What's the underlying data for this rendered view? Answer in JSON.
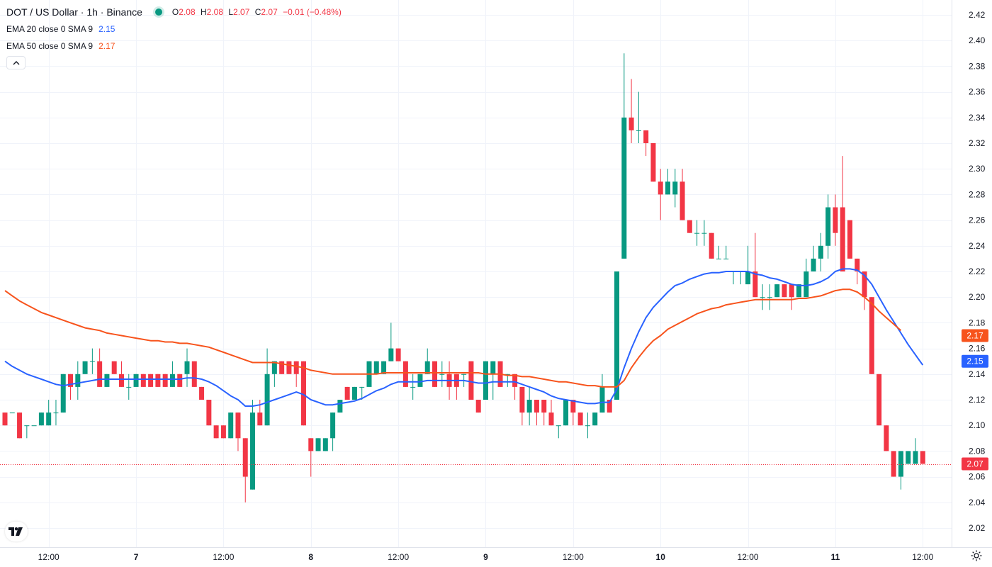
{
  "header": {
    "symbol": "DOT / US Dollar · 1h · Binance",
    "ohlc": [
      {
        "key": "O",
        "value": "2.08"
      },
      {
        "key": "H",
        "value": "2.08"
      },
      {
        "key": "L",
        "value": "2.07"
      },
      {
        "key": "C",
        "value": "2.07"
      }
    ],
    "change": "−0.01 (−0.48%)"
  },
  "indicators": [
    {
      "label": "EMA 20 close 0 SMA 9",
      "value": "2.15",
      "color": "#2962ff"
    },
    {
      "label": "EMA 50 close 0 SMA 9",
      "value": "2.17",
      "color": "#f7531c"
    }
  ],
  "icons": {
    "collapse": "chevron-up-icon",
    "logo": "tradingview-logo-icon",
    "settings": "gear-icon"
  },
  "colors": {
    "up": "#089981",
    "down": "#f23645",
    "ema20": "#2962ff",
    "ema50": "#f7531c",
    "grid": "#f0f3fa"
  },
  "chart_data": {
    "type": "candlestick",
    "xlabel": "",
    "ylabel": "",
    "ylim": [
      2.01,
      2.425
    ],
    "y_ticks": [
      "2.02",
      "2.04",
      "2.06",
      "2.08",
      "2.10",
      "2.12",
      "2.14",
      "2.16",
      "2.18",
      "2.20",
      "2.22",
      "2.24",
      "2.26",
      "2.28",
      "2.30",
      "2.32",
      "2.34",
      "2.36",
      "2.38",
      "2.40",
      "2.42"
    ],
    "x_ticks": [
      {
        "label": "12:00",
        "bar": 6
      },
      {
        "label": "7",
        "bar": 18
      },
      {
        "label": "12:00",
        "bar": 30
      },
      {
        "label": "8",
        "bar": 42
      },
      {
        "label": "12:00",
        "bar": 54
      },
      {
        "label": "9",
        "bar": 66
      },
      {
        "label": "12:00",
        "bar": 78
      },
      {
        "label": "10",
        "bar": 90
      },
      {
        "label": "12:00",
        "bar": 102
      },
      {
        "label": "11",
        "bar": 114
      },
      {
        "label": "12:00",
        "bar": 126
      }
    ],
    "last_price": "2.07",
    "ema20_last": "2.15",
    "ema50_last": "2.17",
    "candles": [
      [
        2.11,
        2.11,
        2.1,
        2.1
      ],
      [
        2.11,
        2.11,
        2.11,
        2.11
      ],
      [
        2.11,
        2.11,
        2.09,
        2.09
      ],
      [
        2.1,
        2.1,
        2.09,
        2.1
      ],
      [
        2.1,
        2.1,
        2.1,
        2.1
      ],
      [
        2.1,
        2.11,
        2.1,
        2.11
      ],
      [
        2.1,
        2.12,
        2.1,
        2.11
      ],
      [
        2.11,
        2.12,
        2.1,
        2.11
      ],
      [
        2.11,
        2.14,
        2.11,
        2.14
      ],
      [
        2.14,
        2.14,
        2.12,
        2.13
      ],
      [
        2.13,
        2.15,
        2.12,
        2.14
      ],
      [
        2.14,
        2.15,
        2.14,
        2.15
      ],
      [
        2.15,
        2.16,
        2.14,
        2.15
      ],
      [
        2.15,
        2.16,
        2.13,
        2.13
      ],
      [
        2.13,
        2.14,
        2.13,
        2.14
      ],
      [
        2.15,
        2.15,
        2.14,
        2.14
      ],
      [
        2.14,
        2.15,
        2.13,
        2.13
      ],
      [
        2.13,
        2.14,
        2.12,
        2.13
      ],
      [
        2.13,
        2.14,
        2.13,
        2.14
      ],
      [
        2.14,
        2.14,
        2.13,
        2.13
      ],
      [
        2.14,
        2.14,
        2.13,
        2.13
      ],
      [
        2.14,
        2.14,
        2.13,
        2.13
      ],
      [
        2.14,
        2.14,
        2.13,
        2.13
      ],
      [
        2.13,
        2.15,
        2.13,
        2.14
      ],
      [
        2.14,
        2.14,
        2.13,
        2.13
      ],
      [
        2.14,
        2.16,
        2.13,
        2.15
      ],
      [
        2.15,
        2.15,
        2.13,
        2.13
      ],
      [
        2.13,
        2.13,
        2.12,
        2.12
      ],
      [
        2.12,
        2.12,
        2.1,
        2.1
      ],
      [
        2.1,
        2.1,
        2.09,
        2.09
      ],
      [
        2.1,
        2.1,
        2.09,
        2.09
      ],
      [
        2.09,
        2.11,
        2.09,
        2.11
      ],
      [
        2.11,
        2.11,
        2.08,
        2.09
      ],
      [
        2.09,
        2.09,
        2.04,
        2.06
      ],
      [
        2.05,
        2.12,
        2.05,
        2.11
      ],
      [
        2.11,
        2.12,
        2.1,
        2.1
      ],
      [
        2.1,
        2.16,
        2.1,
        2.14
      ],
      [
        2.14,
        2.15,
        2.13,
        2.15
      ],
      [
        2.15,
        2.15,
        2.14,
        2.14
      ],
      [
        2.15,
        2.15,
        2.14,
        2.14
      ],
      [
        2.15,
        2.15,
        2.13,
        2.14
      ],
      [
        2.15,
        2.15,
        2.1,
        2.1
      ],
      [
        2.09,
        2.09,
        2.06,
        2.08
      ],
      [
        2.08,
        2.09,
        2.08,
        2.09
      ],
      [
        2.08,
        2.09,
        2.08,
        2.09
      ],
      [
        2.09,
        2.11,
        2.08,
        2.11
      ],
      [
        2.11,
        2.12,
        2.11,
        2.12
      ],
      [
        2.13,
        2.13,
        2.12,
        2.12
      ],
      [
        2.12,
        2.13,
        2.12,
        2.13
      ],
      [
        2.13,
        2.13,
        2.12,
        2.13
      ],
      [
        2.13,
        2.15,
        2.13,
        2.15
      ],
      [
        2.14,
        2.15,
        2.14,
        2.15
      ],
      [
        2.14,
        2.15,
        2.14,
        2.15
      ],
      [
        2.15,
        2.18,
        2.15,
        2.16
      ],
      [
        2.16,
        2.16,
        2.15,
        2.15
      ],
      [
        2.15,
        2.15,
        2.13,
        2.13
      ],
      [
        2.13,
        2.14,
        2.12,
        2.13
      ],
      [
        2.13,
        2.14,
        2.13,
        2.14
      ],
      [
        2.14,
        2.16,
        2.14,
        2.15
      ],
      [
        2.15,
        2.15,
        2.13,
        2.13
      ],
      [
        2.14,
        2.15,
        2.13,
        2.14
      ],
      [
        2.14,
        2.15,
        2.12,
        2.13
      ],
      [
        2.14,
        2.14,
        2.12,
        2.13
      ],
      [
        2.14,
        2.14,
        2.13,
        2.14
      ],
      [
        2.15,
        2.15,
        2.12,
        2.12
      ],
      [
        2.12,
        2.12,
        2.11,
        2.11
      ],
      [
        2.12,
        2.15,
        2.12,
        2.15
      ],
      [
        2.14,
        2.15,
        2.12,
        2.15
      ],
      [
        2.15,
        2.15,
        2.13,
        2.13
      ],
      [
        2.14,
        2.14,
        2.13,
        2.14
      ],
      [
        2.14,
        2.14,
        2.12,
        2.13
      ],
      [
        2.13,
        2.13,
        2.1,
        2.11
      ],
      [
        2.11,
        2.13,
        2.1,
        2.12
      ],
      [
        2.12,
        2.12,
        2.1,
        2.11
      ],
      [
        2.12,
        2.12,
        2.1,
        2.11
      ],
      [
        2.11,
        2.12,
        2.1,
        2.1
      ],
      [
        2.1,
        2.1,
        2.09,
        2.1
      ],
      [
        2.1,
        2.12,
        2.1,
        2.12
      ],
      [
        2.12,
        2.12,
        2.1,
        2.11
      ],
      [
        2.11,
        2.11,
        2.1,
        2.1
      ],
      [
        2.1,
        2.11,
        2.09,
        2.1
      ],
      [
        2.1,
        2.11,
        2.1,
        2.11
      ],
      [
        2.11,
        2.14,
        2.11,
        2.13
      ],
      [
        2.12,
        2.12,
        2.11,
        2.11
      ],
      [
        2.12,
        2.22,
        2.12,
        2.22
      ],
      [
        2.23,
        2.39,
        2.23,
        2.34
      ],
      [
        2.34,
        2.37,
        2.32,
        2.33
      ],
      [
        2.33,
        2.36,
        2.32,
        2.33
      ],
      [
        2.33,
        2.33,
        2.31,
        2.32
      ],
      [
        2.32,
        2.32,
        2.29,
        2.29
      ],
      [
        2.29,
        2.3,
        2.26,
        2.28
      ],
      [
        2.28,
        2.3,
        2.28,
        2.29
      ],
      [
        2.28,
        2.3,
        2.27,
        2.29
      ],
      [
        2.29,
        2.3,
        2.26,
        2.26
      ],
      [
        2.26,
        2.26,
        2.25,
        2.25
      ],
      [
        2.25,
        2.26,
        2.24,
        2.25
      ],
      [
        2.25,
        2.26,
        2.24,
        2.25
      ],
      [
        2.25,
        2.25,
        2.23,
        2.23
      ],
      [
        2.23,
        2.24,
        2.23,
        2.23
      ],
      [
        2.23,
        2.24,
        2.23,
        2.23
      ],
      [
        2.22,
        2.22,
        2.21,
        2.22
      ],
      [
        2.22,
        2.22,
        2.21,
        2.22
      ],
      [
        2.21,
        2.24,
        2.21,
        2.22
      ],
      [
        2.22,
        2.25,
        2.2,
        2.2
      ],
      [
        2.2,
        2.21,
        2.19,
        2.2
      ],
      [
        2.2,
        2.21,
        2.19,
        2.2
      ],
      [
        2.2,
        2.21,
        2.2,
        2.21
      ],
      [
        2.21,
        2.21,
        2.2,
        2.2
      ],
      [
        2.21,
        2.21,
        2.19,
        2.2
      ],
      [
        2.2,
        2.21,
        2.2,
        2.21
      ],
      [
        2.2,
        2.23,
        2.2,
        2.22
      ],
      [
        2.22,
        2.24,
        2.22,
        2.23
      ],
      [
        2.23,
        2.25,
        2.22,
        2.24
      ],
      [
        2.24,
        2.28,
        2.23,
        2.27
      ],
      [
        2.27,
        2.28,
        2.24,
        2.25
      ],
      [
        2.27,
        2.31,
        2.22,
        2.22
      ],
      [
        2.26,
        2.26,
        2.23,
        2.23
      ],
      [
        2.23,
        2.23,
        2.21,
        2.22
      ],
      [
        2.22,
        2.22,
        2.19,
        2.2
      ],
      [
        2.2,
        2.2,
        2.14,
        2.14
      ],
      [
        2.14,
        2.14,
        2.1,
        2.1
      ],
      [
        2.1,
        2.1,
        2.08,
        2.08
      ],
      [
        2.08,
        2.08,
        2.06,
        2.06
      ],
      [
        2.06,
        2.08,
        2.05,
        2.08
      ],
      [
        2.07,
        2.08,
        2.07,
        2.08
      ],
      [
        2.07,
        2.09,
        2.07,
        2.08
      ],
      [
        2.08,
        2.08,
        2.07,
        2.07
      ]
    ],
    "series": [
      {
        "name": "EMA 20 close 0 SMA 9",
        "values": [
          2.15,
          2.146,
          2.143,
          2.14,
          2.138,
          2.136,
          2.134,
          2.132,
          2.131,
          2.132,
          2.133,
          2.134,
          2.135,
          2.136,
          2.136,
          2.136,
          2.136,
          2.136,
          2.136,
          2.136,
          2.136,
          2.136,
          2.136,
          2.136,
          2.136,
          2.137,
          2.137,
          2.136,
          2.134,
          2.131,
          2.127,
          2.123,
          2.12,
          2.115,
          2.115,
          2.116,
          2.118,
          2.12,
          2.122,
          2.124,
          2.126,
          2.124,
          2.12,
          2.118,
          2.116,
          2.116,
          2.117,
          2.118,
          2.119,
          2.121,
          2.124,
          2.127,
          2.129,
          2.132,
          2.134,
          2.134,
          2.134,
          2.134,
          2.135,
          2.135,
          2.135,
          2.135,
          2.135,
          2.135,
          2.134,
          2.133,
          2.133,
          2.134,
          2.134,
          2.134,
          2.134,
          2.132,
          2.13,
          2.128,
          2.126,
          2.123,
          2.121,
          2.12,
          2.119,
          2.118,
          2.117,
          2.117,
          2.118,
          2.118,
          2.128,
          2.145,
          2.16,
          2.173,
          2.184,
          2.192,
          2.198,
          2.204,
          2.209,
          2.211,
          2.214,
          2.216,
          2.218,
          2.219,
          2.219,
          2.22,
          2.22,
          2.22,
          2.22,
          2.218,
          2.217,
          2.215,
          2.214,
          2.212,
          2.21,
          2.209,
          2.209,
          2.21,
          2.212,
          2.215,
          2.22,
          2.222,
          2.222,
          2.221,
          2.217,
          2.21,
          2.2,
          2.19,
          2.181,
          2.172,
          2.163,
          2.155,
          2.147
        ]
      },
      {
        "name": "EMA 50 close 0 SMA 9",
        "values": [
          2.205,
          2.201,
          2.197,
          2.194,
          2.191,
          2.188,
          2.186,
          2.184,
          2.182,
          2.18,
          2.178,
          2.176,
          2.175,
          2.174,
          2.172,
          2.171,
          2.17,
          2.169,
          2.168,
          2.167,
          2.166,
          2.166,
          2.165,
          2.165,
          2.164,
          2.164,
          2.163,
          2.162,
          2.161,
          2.159,
          2.157,
          2.155,
          2.153,
          2.151,
          2.149,
          2.149,
          2.149,
          2.149,
          2.148,
          2.147,
          2.146,
          2.145,
          2.143,
          2.142,
          2.141,
          2.14,
          2.14,
          2.14,
          2.14,
          2.14,
          2.14,
          2.14,
          2.141,
          2.141,
          2.141,
          2.141,
          2.141,
          2.141,
          2.141,
          2.141,
          2.141,
          2.141,
          2.141,
          2.141,
          2.141,
          2.141,
          2.14,
          2.14,
          2.14,
          2.139,
          2.139,
          2.138,
          2.138,
          2.137,
          2.136,
          2.135,
          2.134,
          2.134,
          2.133,
          2.132,
          2.131,
          2.131,
          2.13,
          2.13,
          2.13,
          2.135,
          2.145,
          2.153,
          2.16,
          2.166,
          2.17,
          2.175,
          2.178,
          2.181,
          2.184,
          2.187,
          2.189,
          2.191,
          2.192,
          2.194,
          2.195,
          2.196,
          2.197,
          2.198,
          2.198,
          2.198,
          2.198,
          2.198,
          2.198,
          2.199,
          2.199,
          2.2,
          2.201,
          2.203,
          2.205,
          2.206,
          2.206,
          2.204,
          2.2,
          2.195,
          2.189,
          2.184,
          2.179,
          2.174
        ]
      }
    ]
  }
}
